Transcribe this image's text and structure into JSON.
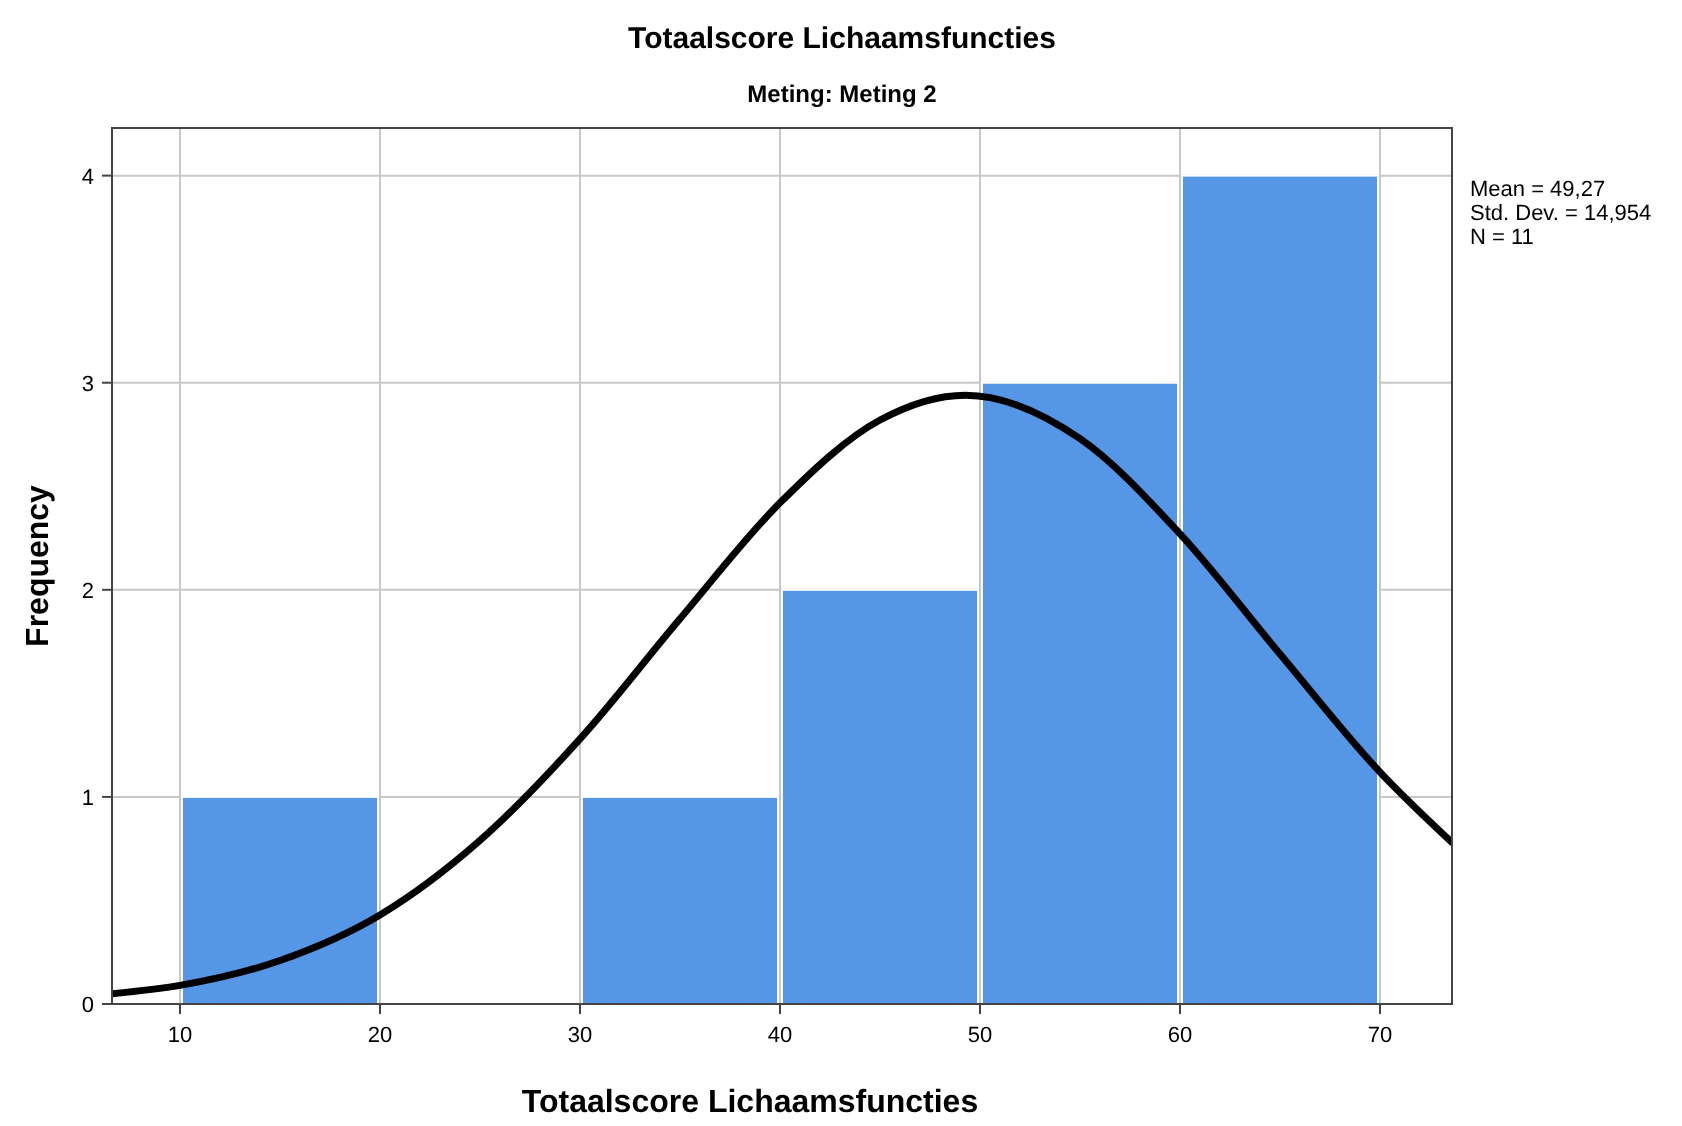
{
  "chart_data": {
    "type": "histogram",
    "title": "Totaalscore Lichaamsfuncties",
    "subtitle": "Meting: Meting 2",
    "xlabel": "Totaalscore Lichaamsfuncties",
    "ylabel": "Frequency",
    "bins": [
      10,
      20,
      30,
      40,
      50,
      60,
      70
    ],
    "values": [
      1,
      0,
      1,
      2,
      3,
      4
    ],
    "color": "#5596e6",
    "series": [
      {
        "type": "line",
        "color": "#000000",
        "x": [
          6.6,
          10,
          15,
          20,
          25,
          30,
          35,
          40,
          45,
          49.27,
          55,
          60,
          65,
          70,
          73.6
        ],
        "values": [
          0.05,
          0.09,
          0.21,
          0.43,
          0.79,
          1.28,
          1.86,
          2.42,
          2.82,
          2.94,
          2.73,
          2.27,
          1.69,
          1.12,
          0.78
        ]
      }
    ],
    "xlim": [
      6.6,
      73.6
    ],
    "ylim": [
      0,
      4.23
    ],
    "xticks": [
      10,
      20,
      30,
      40,
      50,
      60,
      70
    ],
    "yticks": [
      0,
      1,
      2,
      3,
      4
    ],
    "grid": true,
    "annotations": [
      "Mean = 49,27",
      "Std. Dev. = 14,954",
      "N = 11"
    ]
  }
}
